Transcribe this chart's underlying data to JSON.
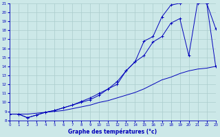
{
  "title": "Graphe des températures (°c)",
  "bg_color": "#cce8e8",
  "line_color": "#0000bb",
  "grid_color": "#aacccc",
  "xlim": [
    0,
    23
  ],
  "ylim": [
    8,
    21
  ],
  "xticks": [
    0,
    1,
    2,
    3,
    4,
    5,
    6,
    7,
    8,
    9,
    10,
    11,
    12,
    13,
    14,
    15,
    16,
    17,
    18,
    19,
    20,
    21,
    22,
    23
  ],
  "yticks": [
    8,
    9,
    10,
    11,
    12,
    13,
    14,
    15,
    16,
    17,
    18,
    19,
    20,
    21
  ],
  "line1_x": [
    0,
    1,
    2,
    3,
    4,
    5,
    6,
    7,
    8,
    9,
    10,
    11,
    12,
    13,
    14,
    15,
    16,
    17,
    18,
    19,
    20,
    21,
    22,
    23
  ],
  "line1_y": [
    8.7,
    8.7,
    8.7,
    8.8,
    8.9,
    9.0,
    9.1,
    9.3,
    9.5,
    9.7,
    10.0,
    10.2,
    10.5,
    10.8,
    11.1,
    11.5,
    12.0,
    12.5,
    12.8,
    13.2,
    13.5,
    13.7,
    13.8,
    14.0
  ],
  "line2_x": [
    0,
    1,
    2,
    3,
    4,
    5,
    6,
    7,
    8,
    9,
    10,
    11,
    12,
    13,
    14,
    15,
    16,
    17,
    18,
    19,
    20,
    21,
    22,
    23
  ],
  "line2_y": [
    8.7,
    8.7,
    8.3,
    8.6,
    8.9,
    9.1,
    9.4,
    9.7,
    10.1,
    10.5,
    11.0,
    11.5,
    12.0,
    13.5,
    14.5,
    16.8,
    17.3,
    19.5,
    20.8,
    21.0,
    21.2,
    21.0,
    21.0,
    14.0
  ],
  "line3_x": [
    0,
    1,
    2,
    3,
    4,
    5,
    6,
    7,
    8,
    9,
    10,
    11,
    12,
    13,
    14,
    15,
    16,
    17,
    18,
    19,
    20,
    21,
    22,
    23
  ],
  "line3_y": [
    8.7,
    8.7,
    8.3,
    8.6,
    8.9,
    9.1,
    9.4,
    9.7,
    10.0,
    10.3,
    10.8,
    11.5,
    12.3,
    13.5,
    14.5,
    15.2,
    16.7,
    17.3,
    18.8,
    19.3,
    15.2,
    21.2,
    21.0,
    18.2
  ]
}
